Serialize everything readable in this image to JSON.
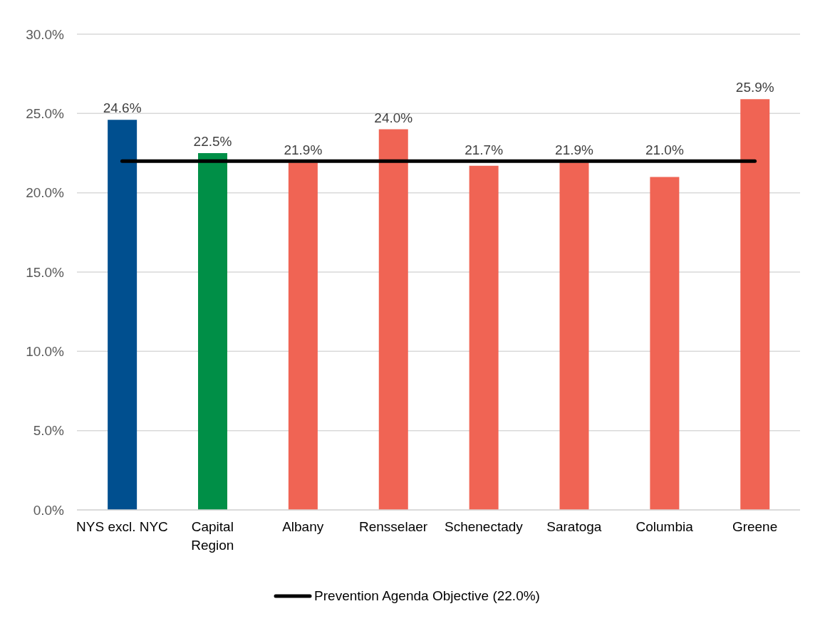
{
  "chart_data": {
    "type": "bar",
    "categories": [
      "NYS excl. NYC",
      "Capital Region",
      "Albany",
      "Rensselaer",
      "Schenectady",
      "Saratoga",
      "Columbia",
      "Greene"
    ],
    "series": [
      {
        "colors": [
          "#004f8f",
          "#008f47",
          "#f06454",
          "#f06454",
          "#f06454",
          "#f06454",
          "#f06454",
          "#f06454"
        ],
        "values": [
          24.6,
          22.5,
          21.9,
          24.0,
          21.7,
          21.9,
          21.0,
          25.9
        ],
        "value_labels": [
          "24.6%",
          "22.5%",
          "21.9%",
          "24.0%",
          "21.7%",
          "21.9%",
          "21.0%",
          "25.9%"
        ]
      },
      {
        "type": "line",
        "name": "Prevention Agenda Objective (22.0%)",
        "color": "#000000",
        "values": [
          22,
          22,
          22,
          22,
          22,
          22,
          22,
          22
        ]
      }
    ],
    "ylim": [
      0,
      30
    ],
    "yticks": [
      {
        "value": 0,
        "label": "0.0%"
      },
      {
        "value": 5,
        "label": "5.0%"
      },
      {
        "value": 10,
        "label": "10.0%"
      },
      {
        "value": 15,
        "label": "15.0%"
      },
      {
        "value": 20,
        "label": "20.0%"
      },
      {
        "value": 25,
        "label": "25.0%"
      },
      {
        "value": 30,
        "label": "30.0%"
      }
    ],
    "grid": "y",
    "legend": "bottom",
    "marker": "none",
    "line_style": "solid"
  }
}
